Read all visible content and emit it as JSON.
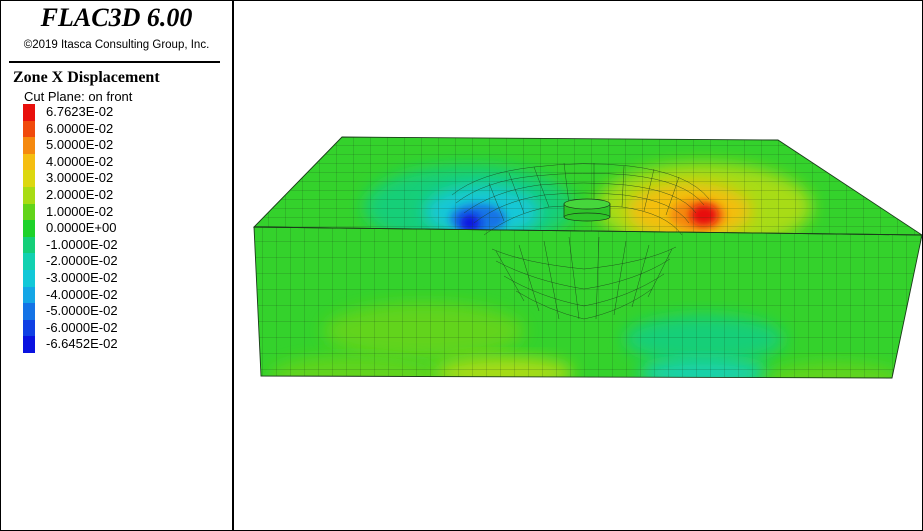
{
  "app_title": "FLAC3D 6.00",
  "copyright": "©2019 Itasca Consulting Group, Inc.",
  "legend": {
    "title": "Zone X Displacement",
    "subtitle": "Cut Plane: on front",
    "entries": [
      {
        "label": "6.7623E-02",
        "color": "#e8100c"
      },
      {
        "label": "6.0000E-02",
        "color": "#f04a0c"
      },
      {
        "label": "5.0000E-02",
        "color": "#f5890f"
      },
      {
        "label": "4.0000E-02",
        "color": "#f5be11"
      },
      {
        "label": "3.0000E-02",
        "color": "#dcd810"
      },
      {
        "label": "2.0000E-02",
        "color": "#a8dc14"
      },
      {
        "label": "1.0000E-02",
        "color": "#62d41a"
      },
      {
        "label": "0.0000E+00",
        "color": "#1ed22a"
      },
      {
        "label": "-1.0000E-02",
        "color": "#14cf78"
      },
      {
        "label": "-2.0000E-02",
        "color": "#12d1b0"
      },
      {
        "label": "-3.0000E-02",
        "color": "#12c8d8"
      },
      {
        "label": "-4.0000E-02",
        "color": "#14a6e6"
      },
      {
        "label": "-5.0000E-02",
        "color": "#1473e6"
      },
      {
        "label": "-6.0000E-02",
        "color": "#1040e4"
      },
      {
        "label": "-6.6452E-02",
        "color": "#0a12e0"
      }
    ]
  },
  "colors": {
    "background": "#ffffff",
    "mesh_base": "#34d22c",
    "mesh_lines": "#1a3a1a"
  }
}
